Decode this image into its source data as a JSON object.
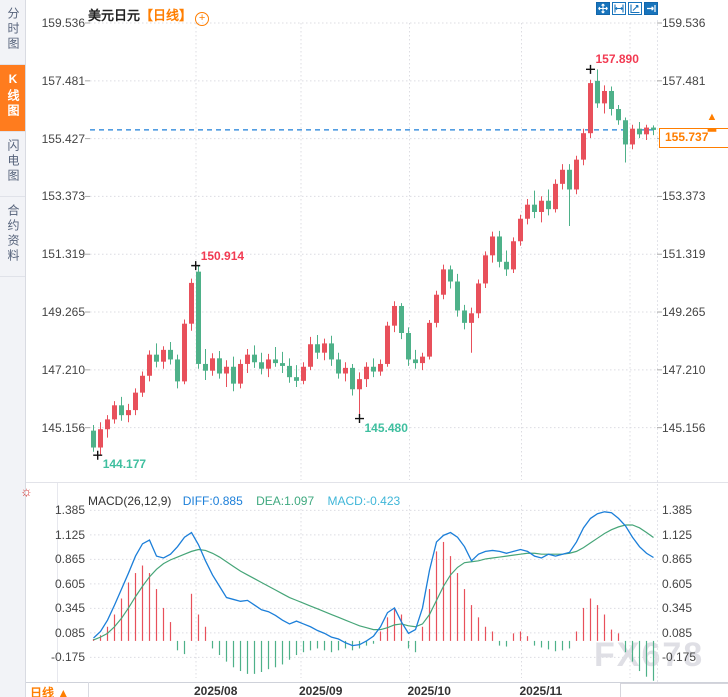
{
  "header": {
    "symbol": "美元日元",
    "period": "【日线】",
    "add_indicator": "+"
  },
  "sidebar": {
    "tabs": [
      {
        "label": "分时图",
        "active": false
      },
      {
        "label": "K线图",
        "active": true
      },
      {
        "label": "闪电图",
        "active": false
      },
      {
        "label": "合约资料",
        "active": false
      }
    ]
  },
  "toolbar_icons": [
    "pan",
    "scale-x",
    "scale-y",
    "go-latest"
  ],
  "bottom_bar": {
    "period_label": "日线",
    "period_arrow": "▲"
  },
  "watermark": "FX678",
  "chart_data": {
    "type": "candlestick+macd",
    "title": "美元日元 日线",
    "price_axis_labels": [
      "159.536",
      "157.481",
      "155.427",
      "153.373",
      "151.319",
      "149.265",
      "147.210",
      "145.156"
    ],
    "price_axis_values": [
      159.536,
      157.481,
      155.427,
      153.373,
      151.319,
      149.265,
      147.21,
      145.156
    ],
    "x_axis_labels": [
      "2025/08",
      "2025/09",
      "2025/10",
      "2025/11"
    ],
    "current_price": {
      "label": "155.737",
      "value": 155.737,
      "arrow": "▲"
    },
    "annotations": [
      {
        "text": "157.890",
        "price": 157.89,
        "index": 71,
        "type": "high"
      },
      {
        "text": "150.914",
        "price": 150.914,
        "index": 14.6,
        "type": "high"
      },
      {
        "text": "145.480",
        "price": 145.48,
        "index": 38,
        "type": "low"
      },
      {
        "text": "144.177",
        "price": 144.177,
        "index": 0.6,
        "type": "low"
      }
    ],
    "candles": [
      [
        145.05,
        145.25,
        144.3,
        144.45
      ],
      [
        144.45,
        145.35,
        144.177,
        145.1
      ],
      [
        145.1,
        145.6,
        144.8,
        145.45
      ],
      [
        145.45,
        146.1,
        145.3,
        145.95
      ],
      [
        145.95,
        146.25,
        145.4,
        145.6
      ],
      [
        145.6,
        146.0,
        145.35,
        145.78
      ],
      [
        145.78,
        146.55,
        145.6,
        146.4
      ],
      [
        146.4,
        147.15,
        146.25,
        147.0
      ],
      [
        147.0,
        147.9,
        146.8,
        147.75
      ],
      [
        147.75,
        148.15,
        147.3,
        147.5
      ],
      [
        147.5,
        148.05,
        147.25,
        147.92
      ],
      [
        147.92,
        148.2,
        147.4,
        147.58
      ],
      [
        147.58,
        147.75,
        146.55,
        146.8
      ],
      [
        146.8,
        149.0,
        146.7,
        148.85
      ],
      [
        148.85,
        150.45,
        148.6,
        150.3
      ],
      [
        150.7,
        150.914,
        147.25,
        147.42
      ],
      [
        147.42,
        147.95,
        146.85,
        147.18
      ],
      [
        147.18,
        147.8,
        147.0,
        147.62
      ],
      [
        147.62,
        147.88,
        146.9,
        147.08
      ],
      [
        147.08,
        147.55,
        146.6,
        147.32
      ],
      [
        147.32,
        147.68,
        146.45,
        146.72
      ],
      [
        146.72,
        147.58,
        146.55,
        147.42
      ],
      [
        147.42,
        147.95,
        147.1,
        147.75
      ],
      [
        147.75,
        148.08,
        147.28,
        147.48
      ],
      [
        147.48,
        147.82,
        147.05,
        147.25
      ],
      [
        147.25,
        147.78,
        146.95,
        147.58
      ],
      [
        147.58,
        148.02,
        147.32,
        147.45
      ],
      [
        147.45,
        147.85,
        147.1,
        147.35
      ],
      [
        147.35,
        147.62,
        146.75,
        146.95
      ],
      [
        146.95,
        147.38,
        146.6,
        146.82
      ],
      [
        146.82,
        147.48,
        146.7,
        147.32
      ],
      [
        147.32,
        148.38,
        147.2,
        148.12
      ],
      [
        148.12,
        148.45,
        147.6,
        147.82
      ],
      [
        147.82,
        148.32,
        147.55,
        148.15
      ],
      [
        148.15,
        148.42,
        147.35,
        147.58
      ],
      [
        147.58,
        147.82,
        146.9,
        147.08
      ],
      [
        147.08,
        147.48,
        146.8,
        147.28
      ],
      [
        147.28,
        147.42,
        146.3,
        146.52
      ],
      [
        146.52,
        147.12,
        145.48,
        146.88
      ],
      [
        146.88,
        147.48,
        146.6,
        147.32
      ],
      [
        147.32,
        147.62,
        146.95,
        147.15
      ],
      [
        147.15,
        147.58,
        147.0,
        147.42
      ],
      [
        147.42,
        148.92,
        147.32,
        148.78
      ],
      [
        148.78,
        149.65,
        148.55,
        149.48
      ],
      [
        149.48,
        149.58,
        148.3,
        148.52
      ],
      [
        148.52,
        148.72,
        147.35,
        147.58
      ],
      [
        147.58,
        147.92,
        147.25,
        147.45
      ],
      [
        147.45,
        147.82,
        147.2,
        147.68
      ],
      [
        147.68,
        148.98,
        147.58,
        148.88
      ],
      [
        148.88,
        150.02,
        148.72,
        149.88
      ],
      [
        149.88,
        150.95,
        149.72,
        150.78
      ],
      [
        150.78,
        150.92,
        150.1,
        150.35
      ],
      [
        150.35,
        150.62,
        149.1,
        149.32
      ],
      [
        149.32,
        149.52,
        148.65,
        148.88
      ],
      [
        148.88,
        149.42,
        147.82,
        149.22
      ],
      [
        149.22,
        150.42,
        149.05,
        150.28
      ],
      [
        150.28,
        151.42,
        150.12,
        151.28
      ],
      [
        151.28,
        152.12,
        151.02,
        151.95
      ],
      [
        151.95,
        152.15,
        150.85,
        151.05
      ],
      [
        151.05,
        151.45,
        150.55,
        150.78
      ],
      [
        150.78,
        151.92,
        150.65,
        151.78
      ],
      [
        151.78,
        152.72,
        151.62,
        152.58
      ],
      [
        152.58,
        153.28,
        152.38,
        153.08
      ],
      [
        153.08,
        153.58,
        152.6,
        152.82
      ],
      [
        152.82,
        153.38,
        152.45,
        153.22
      ],
      [
        153.22,
        153.62,
        152.7,
        152.92
      ],
      [
        152.92,
        153.98,
        152.8,
        153.82
      ],
      [
        153.82,
        154.52,
        153.62,
        154.32
      ],
      [
        154.32,
        154.52,
        152.32,
        153.62
      ],
      [
        153.62,
        154.82,
        153.45,
        154.68
      ],
      [
        154.68,
        155.78,
        154.48,
        155.62
      ],
      [
        155.62,
        157.52,
        155.45,
        157.4
      ],
      [
        157.48,
        157.89,
        156.52,
        156.68
      ],
      [
        156.68,
        157.32,
        156.32,
        157.12
      ],
      [
        157.12,
        157.28,
        156.25,
        156.48
      ],
      [
        156.48,
        156.62,
        155.92,
        156.08
      ],
      [
        156.08,
        156.18,
        154.58,
        155.22
      ],
      [
        155.22,
        155.92,
        155.05,
        155.78
      ],
      [
        155.78,
        156.02,
        155.45,
        155.58
      ],
      [
        155.58,
        155.92,
        155.38,
        155.82
      ],
      [
        155.82,
        155.9,
        155.55,
        155.737
      ]
    ],
    "macd": {
      "name_label": "MACD(26,12,9)",
      "diff_label": "DIFF:0.885",
      "dea_label": "DEA:1.097",
      "macd_label": "MACD:-0.423",
      "axis_labels": [
        "1.385",
        "1.125",
        "0.865",
        "0.605",
        "0.345",
        "0.085",
        "-0.175"
      ],
      "axis_values": [
        1.385,
        1.125,
        0.865,
        0.605,
        0.345,
        0.085,
        -0.175
      ],
      "diff": [
        0.03,
        0.1,
        0.22,
        0.38,
        0.55,
        0.72,
        0.9,
        1.03,
        1.07,
        0.9,
        0.88,
        0.92,
        1.0,
        1.1,
        1.15,
        1.02,
        0.85,
        0.7,
        0.58,
        0.46,
        0.44,
        0.42,
        0.43,
        0.38,
        0.33,
        0.31,
        0.27,
        0.22,
        0.18,
        0.21,
        0.18,
        0.15,
        0.11,
        0.08,
        0.04,
        0.02,
        -0.02,
        -0.05,
        -0.04,
        0.0,
        0.05,
        0.15,
        0.3,
        0.35,
        0.2,
        0.08,
        0.12,
        0.35,
        0.75,
        1.05,
        1.12,
        1.15,
        1.1,
        1.0,
        0.85,
        0.92,
        0.95,
        0.96,
        0.95,
        0.93,
        0.95,
        0.97,
        0.95,
        0.9,
        0.88,
        0.92,
        0.9,
        0.92,
        0.94,
        1.05,
        1.2,
        1.3,
        1.35,
        1.37,
        1.36,
        1.3,
        1.22,
        1.1,
        1.0,
        0.93,
        0.885
      ],
      "dea": [
        0.01,
        0.04,
        0.08,
        0.15,
        0.24,
        0.35,
        0.47,
        0.58,
        0.68,
        0.76,
        0.82,
        0.86,
        0.89,
        0.92,
        0.95,
        0.97,
        0.96,
        0.93,
        0.89,
        0.84,
        0.79,
        0.74,
        0.7,
        0.66,
        0.62,
        0.58,
        0.54,
        0.5,
        0.46,
        0.43,
        0.4,
        0.37,
        0.34,
        0.31,
        0.28,
        0.25,
        0.22,
        0.19,
        0.16,
        0.14,
        0.12,
        0.12,
        0.14,
        0.17,
        0.18,
        0.16,
        0.15,
        0.18,
        0.28,
        0.43,
        0.58,
        0.7,
        0.78,
        0.83,
        0.84,
        0.85,
        0.87,
        0.88,
        0.89,
        0.9,
        0.91,
        0.92,
        0.93,
        0.93,
        0.92,
        0.92,
        0.92,
        0.92,
        0.93,
        0.95,
        0.99,
        1.04,
        1.09,
        1.14,
        1.18,
        1.21,
        1.23,
        1.23,
        1.2,
        1.15,
        1.097
      ],
      "bar": [
        0.02,
        0.06,
        0.15,
        0.28,
        0.45,
        0.62,
        0.72,
        0.8,
        0.72,
        0.55,
        0.35,
        0.2,
        -0.1,
        -0.14,
        0.5,
        0.28,
        0.15,
        -0.08,
        -0.15,
        -0.22,
        -0.28,
        -0.32,
        -0.35,
        -0.35,
        -0.33,
        -0.3,
        -0.28,
        -0.25,
        -0.2,
        -0.15,
        -0.12,
        -0.1,
        -0.08,
        -0.1,
        -0.12,
        -0.1,
        -0.08,
        -0.1,
        -0.08,
        -0.05,
        -0.03,
        0.1,
        0.25,
        0.35,
        0.28,
        -0.08,
        -0.12,
        0.15,
        0.55,
        0.95,
        1.05,
        0.9,
        0.72,
        0.55,
        0.38,
        0.25,
        0.15,
        0.1,
        -0.05,
        -0.06,
        0.08,
        0.1,
        0.05,
        -0.05,
        -0.07,
        -0.09,
        -0.11,
        -0.1,
        -0.08,
        0.1,
        0.35,
        0.45,
        0.38,
        0.28,
        0.12,
        0.08,
        -0.12,
        -0.22,
        -0.32,
        -0.38,
        -0.423
      ]
    },
    "colors": {
      "up": "#e8505b",
      "down": "#4eb189",
      "ann_up": "#f23a52",
      "ann_down": "#3fbf9f",
      "diff_line": "#1c7fd9",
      "dea_line": "#46a578",
      "macd_text": "#3fb6d8",
      "accent": "#ff7e00",
      "dashed_line": "#1c7fd9",
      "grid": "#dcdce2",
      "marker": "#111"
    }
  }
}
